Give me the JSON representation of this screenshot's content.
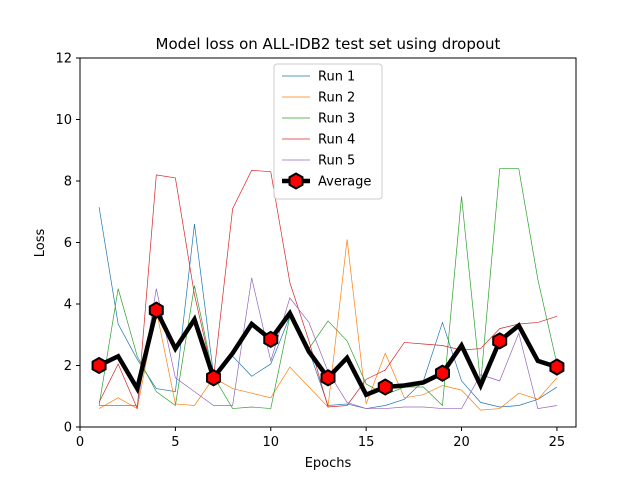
{
  "chart_data": {
    "type": "line",
    "title": "Model loss on ALL-IDB2 test set using dropout",
    "xlabel": "Epochs",
    "ylabel": "Loss",
    "xlim": [
      0,
      26
    ],
    "ylim": [
      0,
      12
    ],
    "xticks": [
      0,
      5,
      10,
      15,
      20,
      25
    ],
    "yticks": [
      0,
      2,
      4,
      6,
      8,
      10,
      12
    ],
    "grid": false,
    "legend_position": "top-center",
    "x": [
      1,
      2,
      3,
      4,
      5,
      6,
      7,
      8,
      9,
      10,
      11,
      12,
      13,
      14,
      15,
      16,
      17,
      18,
      19,
      20,
      21,
      22,
      23,
      24,
      25
    ],
    "series": [
      {
        "name": "Run 1",
        "color": "#1f77b4",
        "values": [
          7.15,
          3.35,
          2.2,
          1.25,
          1.15,
          6.6,
          1.7,
          2.3,
          1.65,
          2.05,
          3.6,
          2.5,
          0.7,
          0.75,
          0.6,
          0.7,
          0.9,
          1.5,
          3.4,
          1.5,
          0.8,
          0.65,
          0.7,
          0.9,
          1.3
        ]
      },
      {
        "name": "Run 2",
        "color": "#ff7f0e",
        "values": [
          0.6,
          0.95,
          0.6,
          3.8,
          0.75,
          0.7,
          1.6,
          1.25,
          1.1,
          0.95,
          1.95,
          1.3,
          0.65,
          6.1,
          0.75,
          2.4,
          0.95,
          1.05,
          1.35,
          1.2,
          0.55,
          0.6,
          1.1,
          0.9,
          1.6
        ]
      },
      {
        "name": "Run 3",
        "color": "#2ca02c",
        "values": [
          0.7,
          4.5,
          2.3,
          1.15,
          0.7,
          4.6,
          1.65,
          0.6,
          0.65,
          0.6,
          3.6,
          2.55,
          3.45,
          2.8,
          1.4,
          1.05,
          1.3,
          1.3,
          0.7,
          7.5,
          1.4,
          8.4,
          8.4,
          4.8,
          2.05
        ]
      },
      {
        "name": "Run 4",
        "color": "#d62728",
        "values": [
          0.8,
          2.05,
          0.6,
          8.2,
          8.1,
          4.3,
          1.6,
          7.1,
          8.35,
          8.3,
          4.7,
          2.8,
          0.65,
          0.7,
          1.55,
          1.85,
          2.75,
          2.7,
          2.65,
          2.5,
          2.55,
          3.2,
          3.35,
          3.4,
          3.6
        ]
      },
      {
        "name": "Run 5",
        "color": "#9467bd",
        "values": [
          0.7,
          0.7,
          0.7,
          4.5,
          1.6,
          1.15,
          0.7,
          0.7,
          4.85,
          2.15,
          4.2,
          3.4,
          1.8,
          0.8,
          0.6,
          0.6,
          0.65,
          0.65,
          0.6,
          0.6,
          1.7,
          1.5,
          3.05,
          0.6,
          0.7
        ]
      },
      {
        "name": "Average",
        "color": "#000000",
        "marker_color": "#ff0000",
        "values": [
          2.0,
          2.3,
          1.25,
          3.8,
          2.55,
          3.5,
          1.6,
          2.4,
          3.35,
          2.85,
          3.7,
          2.45,
          1.6,
          2.25,
          1.05,
          1.3,
          1.35,
          1.45,
          1.75,
          2.65,
          1.35,
          2.8,
          3.3,
          2.15,
          1.95
        ],
        "marked_points": [
          1,
          4,
          7,
          10,
          13,
          16,
          19,
          22,
          25
        ]
      }
    ]
  }
}
